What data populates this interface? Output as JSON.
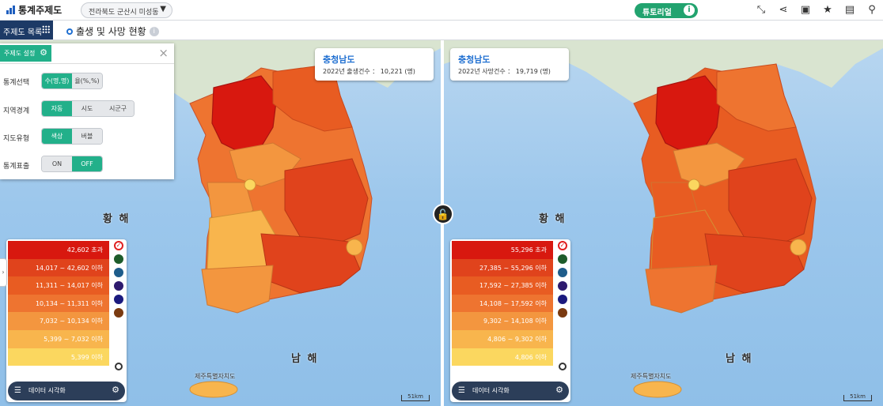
{
  "header": {
    "app_title": "통계주제도",
    "region_select": "전라북도 군산시 미성동",
    "tutorial_label": "튜토리얼"
  },
  "toolbar_icons": [
    "compress-icon",
    "share-icon",
    "image-icon",
    "star-icon",
    "document-icon",
    "pin-plus-icon"
  ],
  "subbar": {
    "toc_label": "주제도 목록",
    "topic_title": "출생 및 사망 현황"
  },
  "settings_panel": {
    "title": "주제도 설정",
    "rows": [
      {
        "label": "통계선택",
        "options": [
          "수(명,명)",
          "율(%,%)"
        ],
        "selected": 0
      },
      {
        "label": "지역경계",
        "options": [
          "자동",
          "시도",
          "시군구"
        ],
        "selected": 0
      },
      {
        "label": "지도유형",
        "options": [
          "색상",
          "버블"
        ],
        "selected": 0
      },
      {
        "label": "통계표출",
        "options": [
          "ON",
          "OFF"
        ],
        "selected": 1
      }
    ]
  },
  "map_labels": {
    "sea_west": "황 해",
    "sea_south": "남 해",
    "jeju": "제주특별자치도",
    "scale": "51km"
  },
  "left_map": {
    "info": {
      "region": "충청남도",
      "stat": "2022년 출생건수 ： 10,221 (명)"
    },
    "legend_bins": [
      "42,602 초과",
      "14,017 ~ 42,602 이하",
      "11,311 ~ 14,017 이하",
      "10,134 ~ 11,311 이하",
      "7,032 ~ 10,134 이하",
      "5,399 ~ 7,032 이하",
      "5,399 이하"
    ],
    "viz_label": "데이터 시각화"
  },
  "right_map": {
    "info": {
      "region": "충청남도",
      "stat": "2022년 사망건수 ： 19,719 (명)"
    },
    "legend_bins": [
      "55,296 초과",
      "27,385 ~ 55,296 이하",
      "17,592 ~ 27,385 이하",
      "14,108 ~ 17,592 이하",
      "9,302 ~ 14,108 이하",
      "4,806 ~ 9,302 이하",
      "4,806 이하"
    ],
    "viz_label": "데이터 시각화"
  },
  "colors": {
    "bins": [
      "#d8180f",
      "#e0431c",
      "#e85c22",
      "#ee7430",
      "#f3963f",
      "#f8b54d",
      "#fbd75f"
    ],
    "swatches": [
      "#ffffff",
      "#1d5c2a",
      "#1e5c8a",
      "#2e1a6e",
      "#1b1a7e",
      "#7a3a10"
    ]
  }
}
